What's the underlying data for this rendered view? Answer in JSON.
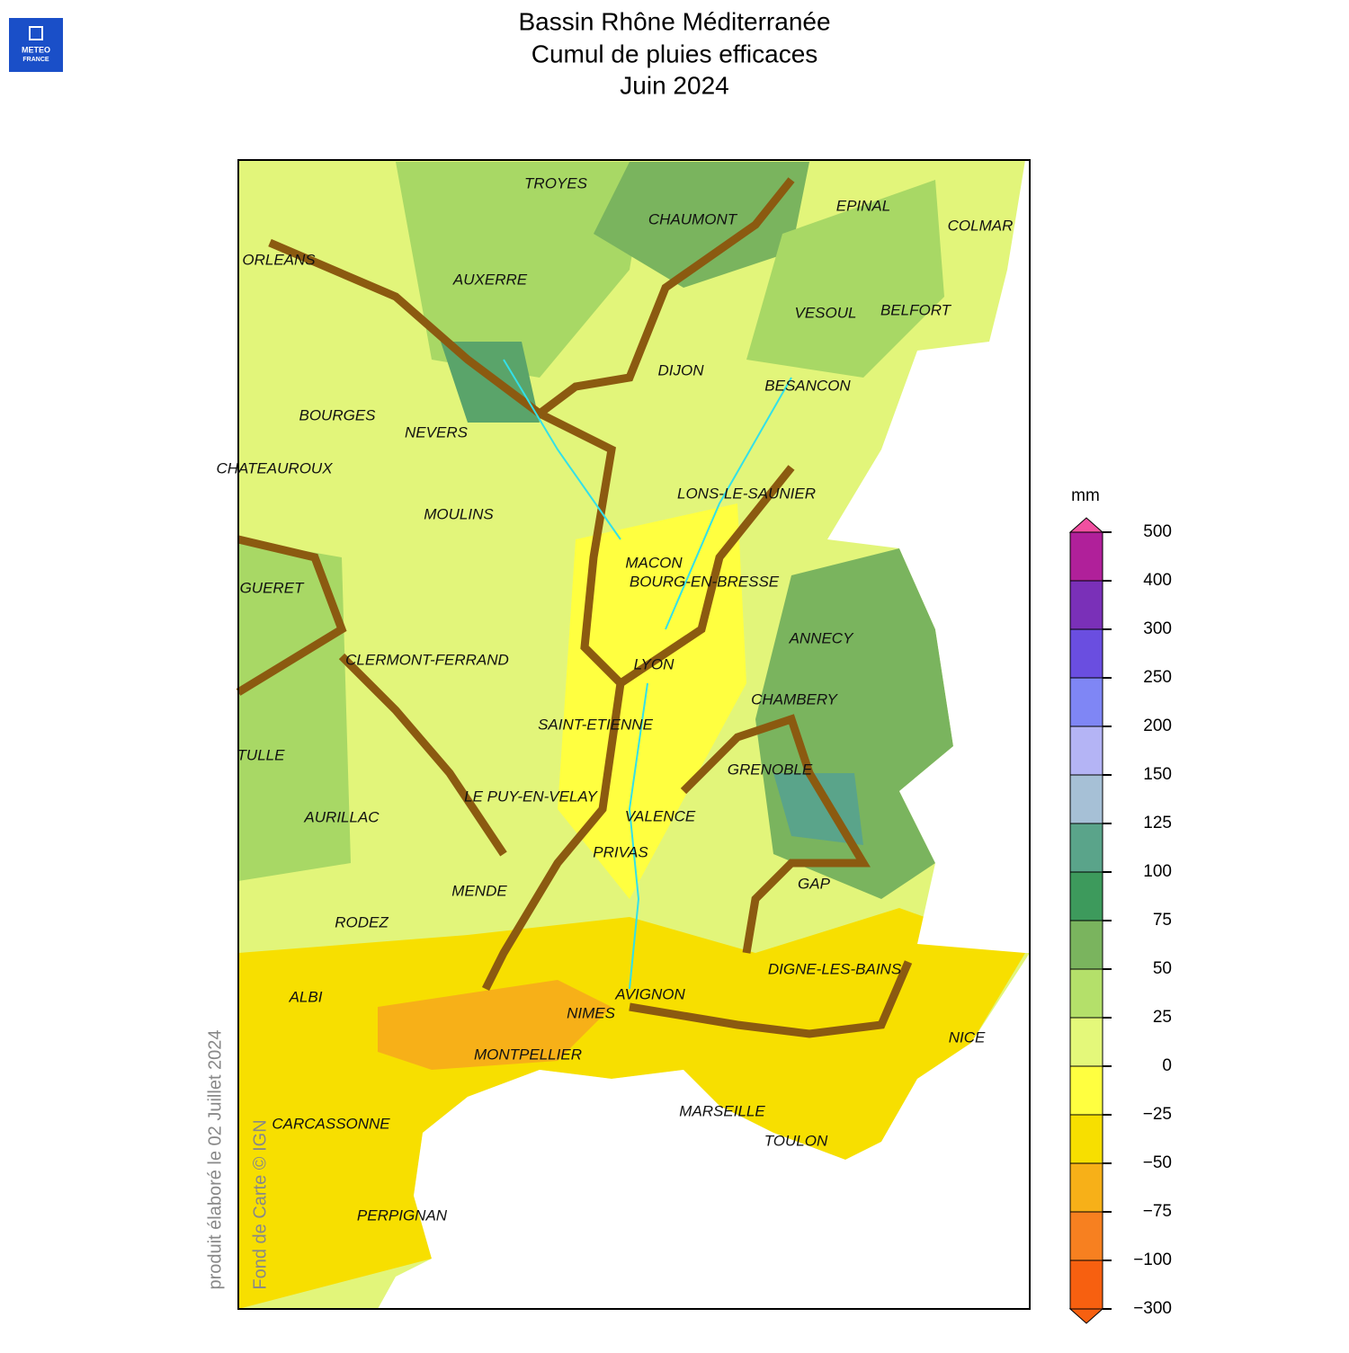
{
  "header": {
    "logo": [
      "METEO",
      "FRANCE"
    ],
    "title": [
      "Bassin Rhône Méditerranée",
      "Cumul de pluies efficaces",
      "Juin 2024"
    ]
  },
  "map": {
    "cities": [
      "TROYES",
      "CHAUMONT",
      "EPINAL",
      "COLMAR",
      "ORLEANS",
      "AUXERRE",
      "VESOUL",
      "BELFORT",
      "DIJON",
      "BESANCON",
      "BOURGES",
      "NEVERS",
      "CHATEAUROUX",
      "LONS-LE-SAUNIER",
      "MOULINS",
      "MACON",
      "BOURG-EN-BRESSE",
      "GUERET",
      "ANNECY",
      "CLERMONT-FERRAND",
      "LYON",
      "CHAMBERY",
      "SAINT-ETIENNE",
      "TULLE",
      "GRENOBLE",
      "LE PUY-EN-VELAY",
      "AURILLAC",
      "VALENCE",
      "PRIVAS",
      "GAP",
      "MENDE",
      "RODEZ",
      "DIGNE-LES-BAINS",
      "ALBI",
      "AVIGNON",
      "NIMES",
      "NICE",
      "MONTPELLIER",
      "MARSEILLE",
      "CARCASSONNE",
      "TOULON",
      "PERPIGNAN"
    ],
    "credits": [
      "produit élaboré le 02 Juillet 2024",
      "Fond de Carte © IGN"
    ]
  },
  "legend": {
    "unit": "mm",
    "labels": [
      "500",
      "400",
      "300",
      "250",
      "200",
      "150",
      "125",
      "100",
      "75",
      "50",
      "25",
      "0",
      "−25",
      "−50",
      "−75",
      "−100",
      "−300"
    ],
    "colors": [
      "#b0209a",
      "#7a30b8",
      "#6a4ee0",
      "#7f86f5",
      "#b4b4f5",
      "#a6c0d6",
      "#5aa48a",
      "#3d9a5c",
      "#7ab45e",
      "#b4e06a",
      "#e4f87a",
      "#ffff40",
      "#f7df00",
      "#f7b018",
      "#f78020",
      "#f76010"
    ],
    "over_color": "#f050a0",
    "under_color": "#f76010"
  }
}
